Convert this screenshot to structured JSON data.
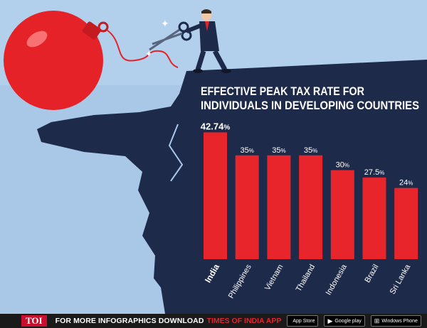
{
  "chart_data": {
    "type": "bar",
    "title": "EFFECTIVE PEAK TAX RATE FOR INDIVIDUALS IN DEVELOPING COUNTRIES",
    "title_lines": [
      "EFFECTIVE PEAK TAX RATE FOR",
      "INDIVIDUALS IN DEVELOPING COUNTRIES"
    ],
    "categories": [
      "India",
      "Philippines",
      "Vietnam",
      "Thailand",
      "Indonesia",
      "Brazil",
      "Sri Lanka"
    ],
    "values": [
      42.74,
      35,
      35,
      35,
      30,
      27.5,
      24
    ],
    "value_labels": [
      "42.74",
      "35",
      "35",
      "35",
      "30",
      "27.5",
      "24"
    ],
    "unit": "%",
    "highlight": "India",
    "ylim": [
      0,
      45
    ],
    "bar_color": "#e8252a",
    "grid": false
  },
  "footer": {
    "logo": "TOI",
    "text": "FOR MORE  INFOGRAPHICS DOWNLOAD",
    "brand": "TIMES OF INDIA APP",
    "stores": [
      {
        "icon": "apple-icon",
        "label": "App Store"
      },
      {
        "icon": "google-play-icon",
        "label": "Google play"
      },
      {
        "icon": "windows-icon",
        "label": "Windows Phone"
      }
    ]
  },
  "colors": {
    "sky": "#a9c8e8",
    "cliff": "#1e2a4a",
    "accent_red": "#e8252a"
  }
}
